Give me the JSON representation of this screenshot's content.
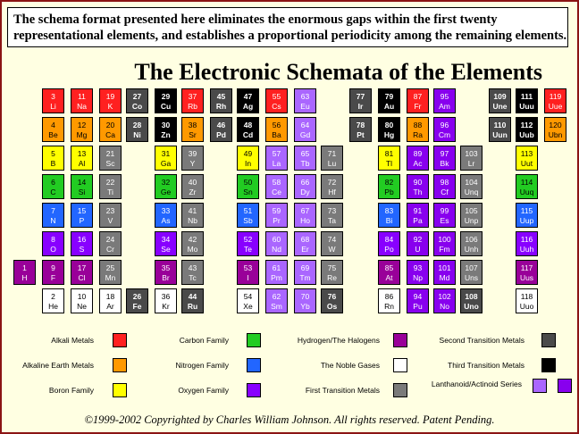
{
  "intro": {
    "line1": "The schema format presented here eliminates the enormous gaps within the first twenty",
    "line2": "representational elements, and establishes a proportional periodicity among the remaining elements."
  },
  "title": "The Electronic Schemata of the Elements",
  "colors": {
    "alkali": "#ff2020",
    "alkaline": "#ff9900",
    "boron": "#ffff00",
    "carbon": "#22cc22",
    "nitrogen": "#2266ff",
    "oxygen": "#8800ff",
    "halogen": "#990099",
    "noble": "#ffffff",
    "first_transition": "#7a7a7a",
    "second_transition": "#4a4a4a",
    "third_transition": "#000000",
    "lanth_a": "#aa66ff",
    "lanth_b": "#8800ee"
  },
  "groups": [
    {
      "col": 0,
      "cells": [
        {
          "n": "3",
          "s": "Li",
          "c": "alkali"
        },
        {
          "n": "4",
          "s": "Be",
          "c": "alkaline"
        },
        {
          "n": "5",
          "s": "B",
          "c": "boron"
        },
        {
          "n": "6",
          "s": "C",
          "c": "carbon"
        },
        {
          "n": "7",
          "s": "N",
          "c": "nitrogen"
        },
        {
          "n": "8",
          "s": "O",
          "c": "oxygen"
        },
        {
          "n": "9",
          "s": "F",
          "c": "halogen"
        },
        {
          "n": "2",
          "s": "He",
          "c": "noble"
        }
      ]
    },
    {
      "col": 1,
      "cells": [
        {
          "n": "11",
          "s": "Na",
          "c": "alkali"
        },
        {
          "n": "12",
          "s": "Mg",
          "c": "alkaline"
        },
        {
          "n": "13",
          "s": "Al",
          "c": "boron"
        },
        {
          "n": "14",
          "s": "Si",
          "c": "carbon"
        },
        {
          "n": "15",
          "s": "P",
          "c": "nitrogen"
        },
        {
          "n": "16",
          "s": "S",
          "c": "oxygen"
        },
        {
          "n": "17",
          "s": "Cl",
          "c": "halogen"
        },
        {
          "n": "10",
          "s": "Ne",
          "c": "noble"
        }
      ]
    },
    {
      "col": 2,
      "cells": [
        {
          "n": "19",
          "s": "K",
          "c": "alkali"
        },
        {
          "n": "20",
          "s": "Ca",
          "c": "alkaline"
        },
        {
          "n": "21",
          "s": "Sc",
          "c": "first_transition"
        },
        {
          "n": "22",
          "s": "Ti",
          "c": "first_transition"
        },
        {
          "n": "23",
          "s": "V",
          "c": "first_transition"
        },
        {
          "n": "24",
          "s": "Cr",
          "c": "first_transition"
        },
        {
          "n": "25",
          "s": "Mn",
          "c": "first_transition"
        },
        {
          "n": "18",
          "s": "Ar",
          "c": "noble"
        }
      ]
    },
    {
      "col": 3,
      "cells": [
        {
          "n": "27",
          "s": "Co",
          "c": "second_transition"
        },
        {
          "n": "28",
          "s": "Ni",
          "c": "second_transition"
        },
        {
          "n": "26",
          "s": "Fe",
          "c": "second_transition",
          "row": 7
        }
      ]
    },
    {
      "col": 4,
      "cells": [
        {
          "n": "29",
          "s": "Cu",
          "c": "third_transition"
        },
        {
          "n": "30",
          "s": "Zn",
          "c": "third_transition"
        },
        {
          "n": "31",
          "s": "Ga",
          "c": "boron"
        },
        {
          "n": "32",
          "s": "Ge",
          "c": "carbon"
        },
        {
          "n": "33",
          "s": "As",
          "c": "nitrogen"
        },
        {
          "n": "34",
          "s": "Se",
          "c": "oxygen"
        },
        {
          "n": "35",
          "s": "Br",
          "c": "halogen"
        },
        {
          "n": "36",
          "s": "Kr",
          "c": "noble"
        }
      ]
    },
    {
      "col": 5,
      "cells": [
        {
          "n": "37",
          "s": "Rb",
          "c": "alkali"
        },
        {
          "n": "38",
          "s": "Sr",
          "c": "alkaline"
        },
        {
          "n": "39",
          "s": "Y",
          "c": "first_transition"
        },
        {
          "n": "40",
          "s": "Zr",
          "c": "first_transition"
        },
        {
          "n": "41",
          "s": "Nb",
          "c": "first_transition"
        },
        {
          "n": "42",
          "s": "Mo",
          "c": "first_transition"
        },
        {
          "n": "43",
          "s": "Tc",
          "c": "first_transition"
        },
        {
          "n": "44",
          "s": "Ru",
          "c": "second_transition"
        }
      ]
    },
    {
      "col": 6,
      "cells": [
        {
          "n": "45",
          "s": "Rh",
          "c": "second_transition"
        },
        {
          "n": "46",
          "s": "Pd",
          "c": "second_transition"
        }
      ]
    },
    {
      "col": 7,
      "cells": [
        {
          "n": "47",
          "s": "Ag",
          "c": "third_transition"
        },
        {
          "n": "48",
          "s": "Cd",
          "c": "third_transition"
        },
        {
          "n": "49",
          "s": "In",
          "c": "boron"
        },
        {
          "n": "50",
          "s": "Sn",
          "c": "carbon"
        },
        {
          "n": "51",
          "s": "Sb",
          "c": "nitrogen"
        },
        {
          "n": "52",
          "s": "Te",
          "c": "oxygen"
        },
        {
          "n": "53",
          "s": "I",
          "c": "halogen"
        },
        {
          "n": "54",
          "s": "Xe",
          "c": "noble"
        }
      ]
    },
    {
      "col": 8,
      "cells": [
        {
          "n": "55",
          "s": "Cs",
          "c": "alkali"
        },
        {
          "n": "56",
          "s": "Ba",
          "c": "alkaline"
        },
        {
          "n": "57",
          "s": "La",
          "c": "lanth_a"
        },
        {
          "n": "58",
          "s": "Ce",
          "c": "lanth_a"
        },
        {
          "n": "59",
          "s": "Pr",
          "c": "lanth_a"
        },
        {
          "n": "60",
          "s": "Nd",
          "c": "lanth_a"
        },
        {
          "n": "61",
          "s": "Pm",
          "c": "lanth_a"
        },
        {
          "n": "62",
          "s": "Sm",
          "c": "lanth_a"
        }
      ]
    },
    {
      "col": 9,
      "cells": [
        {
          "n": "63",
          "s": "Eu",
          "c": "lanth_a"
        },
        {
          "n": "64",
          "s": "Gd",
          "c": "lanth_a"
        },
        {
          "n": "65",
          "s": "Tb",
          "c": "lanth_a"
        },
        {
          "n": "66",
          "s": "Dy",
          "c": "lanth_a"
        },
        {
          "n": "67",
          "s": "Ho",
          "c": "lanth_a"
        },
        {
          "n": "68",
          "s": "Er",
          "c": "lanth_a"
        },
        {
          "n": "69",
          "s": "Tm",
          "c": "lanth_a"
        },
        {
          "n": "70",
          "s": "Yb",
          "c": "lanth_a"
        }
      ]
    },
    {
      "col": 10,
      "cells": [
        {
          "n": "71",
          "s": "Lu",
          "c": "first_transition",
          "row": 2
        },
        {
          "n": "72",
          "s": "Hf",
          "c": "first_transition"
        },
        {
          "n": "73",
          "s": "Ta",
          "c": "first_transition"
        },
        {
          "n": "74",
          "s": "W",
          "c": "first_transition"
        },
        {
          "n": "75",
          "s": "Re",
          "c": "first_transition"
        },
        {
          "n": "76",
          "s": "Os",
          "c": "second_transition"
        }
      ]
    },
    {
      "col": 11,
      "cells": [
        {
          "n": "77",
          "s": "Ir",
          "c": "second_transition"
        },
        {
          "n": "78",
          "s": "Pt",
          "c": "second_transition"
        }
      ]
    },
    {
      "col": 12,
      "cells": [
        {
          "n": "79",
          "s": "Au",
          "c": "third_transition"
        },
        {
          "n": "80",
          "s": "Hg",
          "c": "third_transition"
        },
        {
          "n": "81",
          "s": "Tl",
          "c": "boron"
        },
        {
          "n": "82",
          "s": "Pb",
          "c": "carbon"
        },
        {
          "n": "83",
          "s": "Bi",
          "c": "nitrogen"
        },
        {
          "n": "84",
          "s": "Po",
          "c": "oxygen"
        },
        {
          "n": "85",
          "s": "At",
          "c": "halogen"
        },
        {
          "n": "86",
          "s": "Rn",
          "c": "noble"
        }
      ]
    },
    {
      "col": 13,
      "cells": [
        {
          "n": "87",
          "s": "Fr",
          "c": "alkali"
        },
        {
          "n": "88",
          "s": "Ra",
          "c": "alkaline"
        },
        {
          "n": "89",
          "s": "Ac",
          "c": "lanth_b"
        },
        {
          "n": "90",
          "s": "Th",
          "c": "lanth_b"
        },
        {
          "n": "91",
          "s": "Pa",
          "c": "lanth_b"
        },
        {
          "n": "92",
          "s": "U",
          "c": "lanth_b"
        },
        {
          "n": "93",
          "s": "Np",
          "c": "lanth_b"
        },
        {
          "n": "94",
          "s": "Pu",
          "c": "lanth_b"
        }
      ]
    },
    {
      "col": 14,
      "cells": [
        {
          "n": "95",
          "s": "Am",
          "c": "lanth_b"
        },
        {
          "n": "96",
          "s": "Cm",
          "c": "lanth_b"
        },
        {
          "n": "97",
          "s": "Bk",
          "c": "lanth_b"
        },
        {
          "n": "98",
          "s": "Cf",
          "c": "lanth_b"
        },
        {
          "n": "99",
          "s": "Es",
          "c": "lanth_b"
        },
        {
          "n": "100",
          "s": "Fm",
          "c": "lanth_b"
        },
        {
          "n": "101",
          "s": "Md",
          "c": "lanth_b"
        },
        {
          "n": "102",
          "s": "No",
          "c": "lanth_b"
        }
      ]
    },
    {
      "col": 15,
      "cells": [
        {
          "n": "103",
          "s": "Lr",
          "c": "first_transition",
          "row": 2
        },
        {
          "n": "104",
          "s": "Unq",
          "c": "first_transition"
        },
        {
          "n": "105",
          "s": "Unp",
          "c": "first_transition"
        },
        {
          "n": "106",
          "s": "Unh",
          "c": "first_transition"
        },
        {
          "n": "107",
          "s": "Uns",
          "c": "first_transition"
        },
        {
          "n": "108",
          "s": "Uno",
          "c": "second_transition"
        }
      ]
    },
    {
      "col": 16,
      "cells": [
        {
          "n": "109",
          "s": "Une",
          "c": "second_transition"
        },
        {
          "n": "110",
          "s": "Uun",
          "c": "second_transition"
        }
      ]
    },
    {
      "col": 17,
      "cells": [
        {
          "n": "111",
          "s": "Uuu",
          "c": "third_transition"
        },
        {
          "n": "112",
          "s": "Uub",
          "c": "third_transition"
        },
        {
          "n": "113",
          "s": "Uut",
          "c": "boron"
        },
        {
          "n": "114",
          "s": "Uuq",
          "c": "carbon"
        },
        {
          "n": "115",
          "s": "Uup",
          "c": "nitrogen"
        },
        {
          "n": "116",
          "s": "Uuh",
          "c": "oxygen"
        },
        {
          "n": "117",
          "s": "Uus",
          "c": "halogen"
        },
        {
          "n": "118",
          "s": "Uuo",
          "c": "noble"
        }
      ]
    },
    {
      "col": 18,
      "cells": [
        {
          "n": "119",
          "s": "Uue",
          "c": "alkali"
        },
        {
          "n": "120",
          "s": "Ubn",
          "c": "alkaline"
        }
      ]
    }
  ],
  "hydrogen": {
    "n": "1",
    "s": "H",
    "c": "halogen"
  },
  "legend": [
    {
      "label": "Alkali Metals",
      "c": "alkali"
    },
    {
      "label": "Alkaline Earth Metals",
      "c": "alkaline"
    },
    {
      "label": "Boron Family",
      "c": "boron"
    },
    {
      "label": "Carbon Family",
      "c": "carbon"
    },
    {
      "label": "Nitrogen Family",
      "c": "nitrogen"
    },
    {
      "label": "Oxygen Family",
      "c": "oxygen"
    },
    {
      "label": "Hydrogen/The Halogens",
      "c": "halogen"
    },
    {
      "label": "The Noble Gases",
      "c": "noble"
    },
    {
      "label": "First Transition Metals",
      "c": "first_transition"
    },
    {
      "label": "Second Transition Metals",
      "c": "second_transition"
    },
    {
      "label": "Third Transition Metals",
      "c": "third_transition"
    },
    {
      "label": "Lanthanoid/Actinoid Series",
      "c": "lanth_a",
      "c2": "lanth_b"
    }
  ],
  "footer": "©1999-2002 Copyrighted by Charles William Johnson. All rights reserved. Patent Pending."
}
